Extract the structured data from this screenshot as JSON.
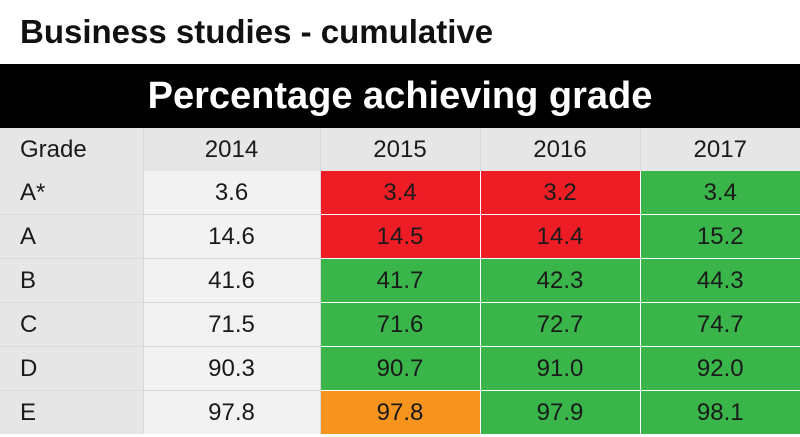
{
  "title": "Business studies - cumulative",
  "banner": "Percentage achieving grade",
  "colors": {
    "red": "#ee1c25",
    "green": "#39b54a",
    "orange": "#f7941d",
    "neutral": "#f2f2f2"
  },
  "chart_data": {
    "type": "table",
    "title": "Business studies - cumulative",
    "subtitle": "Percentage achieving grade",
    "columns": [
      "Grade",
      "2014",
      "2015",
      "2016",
      "2017"
    ],
    "rows": [
      {
        "grade": "A*",
        "values": [
          "3.6",
          "3.4",
          "3.2",
          "3.4"
        ],
        "colors": [
          "neutral",
          "red",
          "red",
          "green"
        ]
      },
      {
        "grade": "A",
        "values": [
          "14.6",
          "14.5",
          "14.4",
          "15.2"
        ],
        "colors": [
          "neutral",
          "red",
          "red",
          "green"
        ]
      },
      {
        "grade": "B",
        "values": [
          "41.6",
          "41.7",
          "42.3",
          "44.3"
        ],
        "colors": [
          "neutral",
          "green",
          "green",
          "green"
        ]
      },
      {
        "grade": "C",
        "values": [
          "71.5",
          "71.6",
          "72.7",
          "74.7"
        ],
        "colors": [
          "neutral",
          "green",
          "green",
          "green"
        ]
      },
      {
        "grade": "D",
        "values": [
          "90.3",
          "90.7",
          "91.0",
          "92.0"
        ],
        "colors": [
          "neutral",
          "green",
          "green",
          "green"
        ]
      },
      {
        "grade": "E",
        "values": [
          "97.8",
          "97.8",
          "97.9",
          "98.1"
        ],
        "colors": [
          "neutral",
          "orange",
          "green",
          "green"
        ]
      }
    ]
  }
}
